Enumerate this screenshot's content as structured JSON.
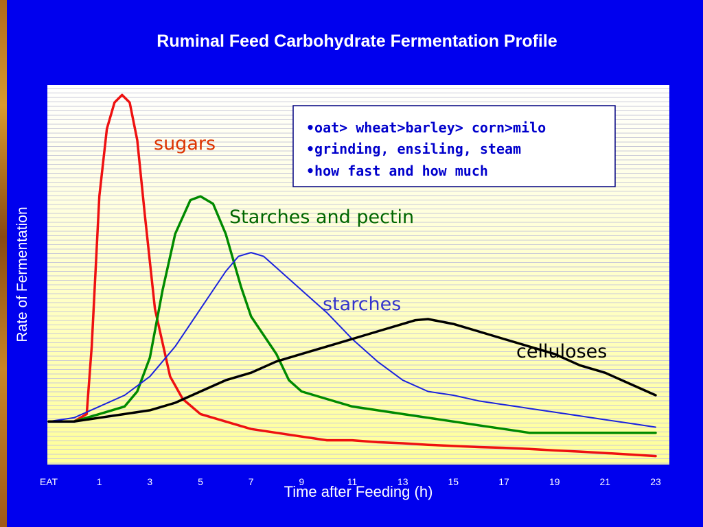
{
  "slide": {
    "title": "Ruminal Feed Carbohydrate Fermentation Profile"
  },
  "colors": {
    "background": "#0000ee",
    "plot_top": "#ffffff",
    "plot_bottom": "#ffff99",
    "sugars": "#ee1111",
    "starches_and_pectin": "#008a00",
    "starches": "#1a22dd",
    "celluloses": "#000000",
    "note_text": "#0000cc",
    "tick_text": "#ffffff"
  },
  "notes": [
    "•oat> wheat>barley> corn>milo",
    "•grinding, ensiling, steam",
    "•how fast and how much"
  ],
  "chart_data": {
    "type": "line",
    "title": "Ruminal Feed Carbohydrate Fermentation Profile",
    "xlabel": "Time after Feeding (h)",
    "ylabel": "Rate of Fermentation",
    "xlim": [
      0,
      24
    ],
    "ylim": [
      0,
      100
    ],
    "x_ticks": [
      {
        "value": 0,
        "label": "EAT"
      },
      {
        "value": 2,
        "label": "1"
      },
      {
        "value": 4,
        "label": "3"
      },
      {
        "value": 6,
        "label": "5"
      },
      {
        "value": 8,
        "label": "7"
      },
      {
        "value": 10,
        "label": "9"
      },
      {
        "value": 12,
        "label": "11"
      },
      {
        "value": 14,
        "label": "13"
      },
      {
        "value": 16,
        "label": "15"
      },
      {
        "value": 18,
        "label": "17"
      },
      {
        "value": 20,
        "label": "19"
      },
      {
        "value": 22,
        "label": "21"
      },
      {
        "value": 24,
        "label": "23"
      }
    ],
    "grid": "horizontal",
    "series": [
      {
        "name": "sugars",
        "color": "#ee1111",
        "points": [
          [
            0,
            10
          ],
          [
            1,
            10
          ],
          [
            1.5,
            12
          ],
          [
            1.7,
            30
          ],
          [
            2,
            70
          ],
          [
            2.3,
            88
          ],
          [
            2.6,
            95
          ],
          [
            2.9,
            97
          ],
          [
            3.2,
            95
          ],
          [
            3.5,
            85
          ],
          [
            3.8,
            65
          ],
          [
            4.2,
            40
          ],
          [
            4.8,
            22
          ],
          [
            5.3,
            16
          ],
          [
            6,
            12
          ],
          [
            7,
            10
          ],
          [
            8,
            8
          ],
          [
            9,
            7
          ],
          [
            10,
            6
          ],
          [
            11,
            5
          ],
          [
            12,
            5
          ],
          [
            13,
            4.5
          ],
          [
            14,
            4.2
          ],
          [
            15,
            3.8
          ],
          [
            16,
            3.5
          ],
          [
            17,
            3.2
          ],
          [
            18,
            3
          ],
          [
            19,
            2.7
          ],
          [
            20,
            2.3
          ],
          [
            21,
            2
          ],
          [
            22,
            1.6
          ],
          [
            23,
            1.2
          ],
          [
            24,
            0.8
          ]
        ]
      },
      {
        "name": "Starches and pectin",
        "color": "#008a00",
        "points": [
          [
            0,
            10
          ],
          [
            1,
            10
          ],
          [
            2,
            12
          ],
          [
            3,
            14
          ],
          [
            3.5,
            18
          ],
          [
            4,
            27
          ],
          [
            4.5,
            45
          ],
          [
            5,
            60
          ],
          [
            5.6,
            69
          ],
          [
            6,
            70
          ],
          [
            6.5,
            68
          ],
          [
            7,
            60
          ],
          [
            7.6,
            46
          ],
          [
            8,
            38
          ],
          [
            9,
            28
          ],
          [
            9.5,
            21
          ],
          [
            10,
            18
          ],
          [
            11,
            16
          ],
          [
            12,
            14
          ],
          [
            13,
            13
          ],
          [
            14,
            12
          ],
          [
            15,
            11
          ],
          [
            16,
            10
          ],
          [
            17,
            9
          ],
          [
            18,
            8
          ],
          [
            19,
            7
          ],
          [
            20,
            7
          ],
          [
            21,
            7
          ],
          [
            22,
            7
          ],
          [
            23,
            7
          ],
          [
            24,
            7
          ]
        ]
      },
      {
        "name": "starches",
        "color": "#1a22dd",
        "points": [
          [
            0,
            10
          ],
          [
            1,
            11
          ],
          [
            2,
            14
          ],
          [
            3,
            17
          ],
          [
            4,
            22
          ],
          [
            5,
            30
          ],
          [
            6,
            40
          ],
          [
            7,
            50
          ],
          [
            7.5,
            54
          ],
          [
            8,
            55
          ],
          [
            8.5,
            54
          ],
          [
            9,
            51
          ],
          [
            10,
            45
          ],
          [
            11,
            39
          ],
          [
            12,
            32
          ],
          [
            13,
            26
          ],
          [
            14,
            21
          ],
          [
            15,
            18
          ],
          [
            16,
            17
          ],
          [
            17,
            15.5
          ],
          [
            18,
            14.5
          ],
          [
            19,
            13.5
          ],
          [
            20,
            12.5
          ],
          [
            21,
            11.5
          ],
          [
            22,
            10.5
          ],
          [
            23,
            9.5
          ],
          [
            24,
            8.5
          ]
        ]
      },
      {
        "name": "celluloses",
        "color": "#000000",
        "points": [
          [
            0,
            10
          ],
          [
            1,
            10
          ],
          [
            2,
            11
          ],
          [
            3,
            12
          ],
          [
            4,
            13
          ],
          [
            5,
            15
          ],
          [
            6,
            18
          ],
          [
            7,
            21
          ],
          [
            8,
            23
          ],
          [
            9,
            26
          ],
          [
            10,
            28
          ],
          [
            11,
            30
          ],
          [
            12,
            32
          ],
          [
            13,
            34
          ],
          [
            14,
            36
          ],
          [
            14.5,
            37
          ],
          [
            15,
            37.3
          ],
          [
            16,
            36
          ],
          [
            17,
            34
          ],
          [
            18,
            32
          ],
          [
            19,
            30
          ],
          [
            20,
            28
          ],
          [
            21,
            25
          ],
          [
            22,
            23
          ],
          [
            23,
            20
          ],
          [
            24,
            17
          ]
        ]
      }
    ],
    "annotations": [
      {
        "text": "sugars",
        "series": "sugars"
      },
      {
        "text": "Starches and pectin",
        "series": "Starches and pectin"
      },
      {
        "text": "starches",
        "series": "starches"
      },
      {
        "text": "celluloses",
        "series": "celluloses"
      }
    ]
  }
}
